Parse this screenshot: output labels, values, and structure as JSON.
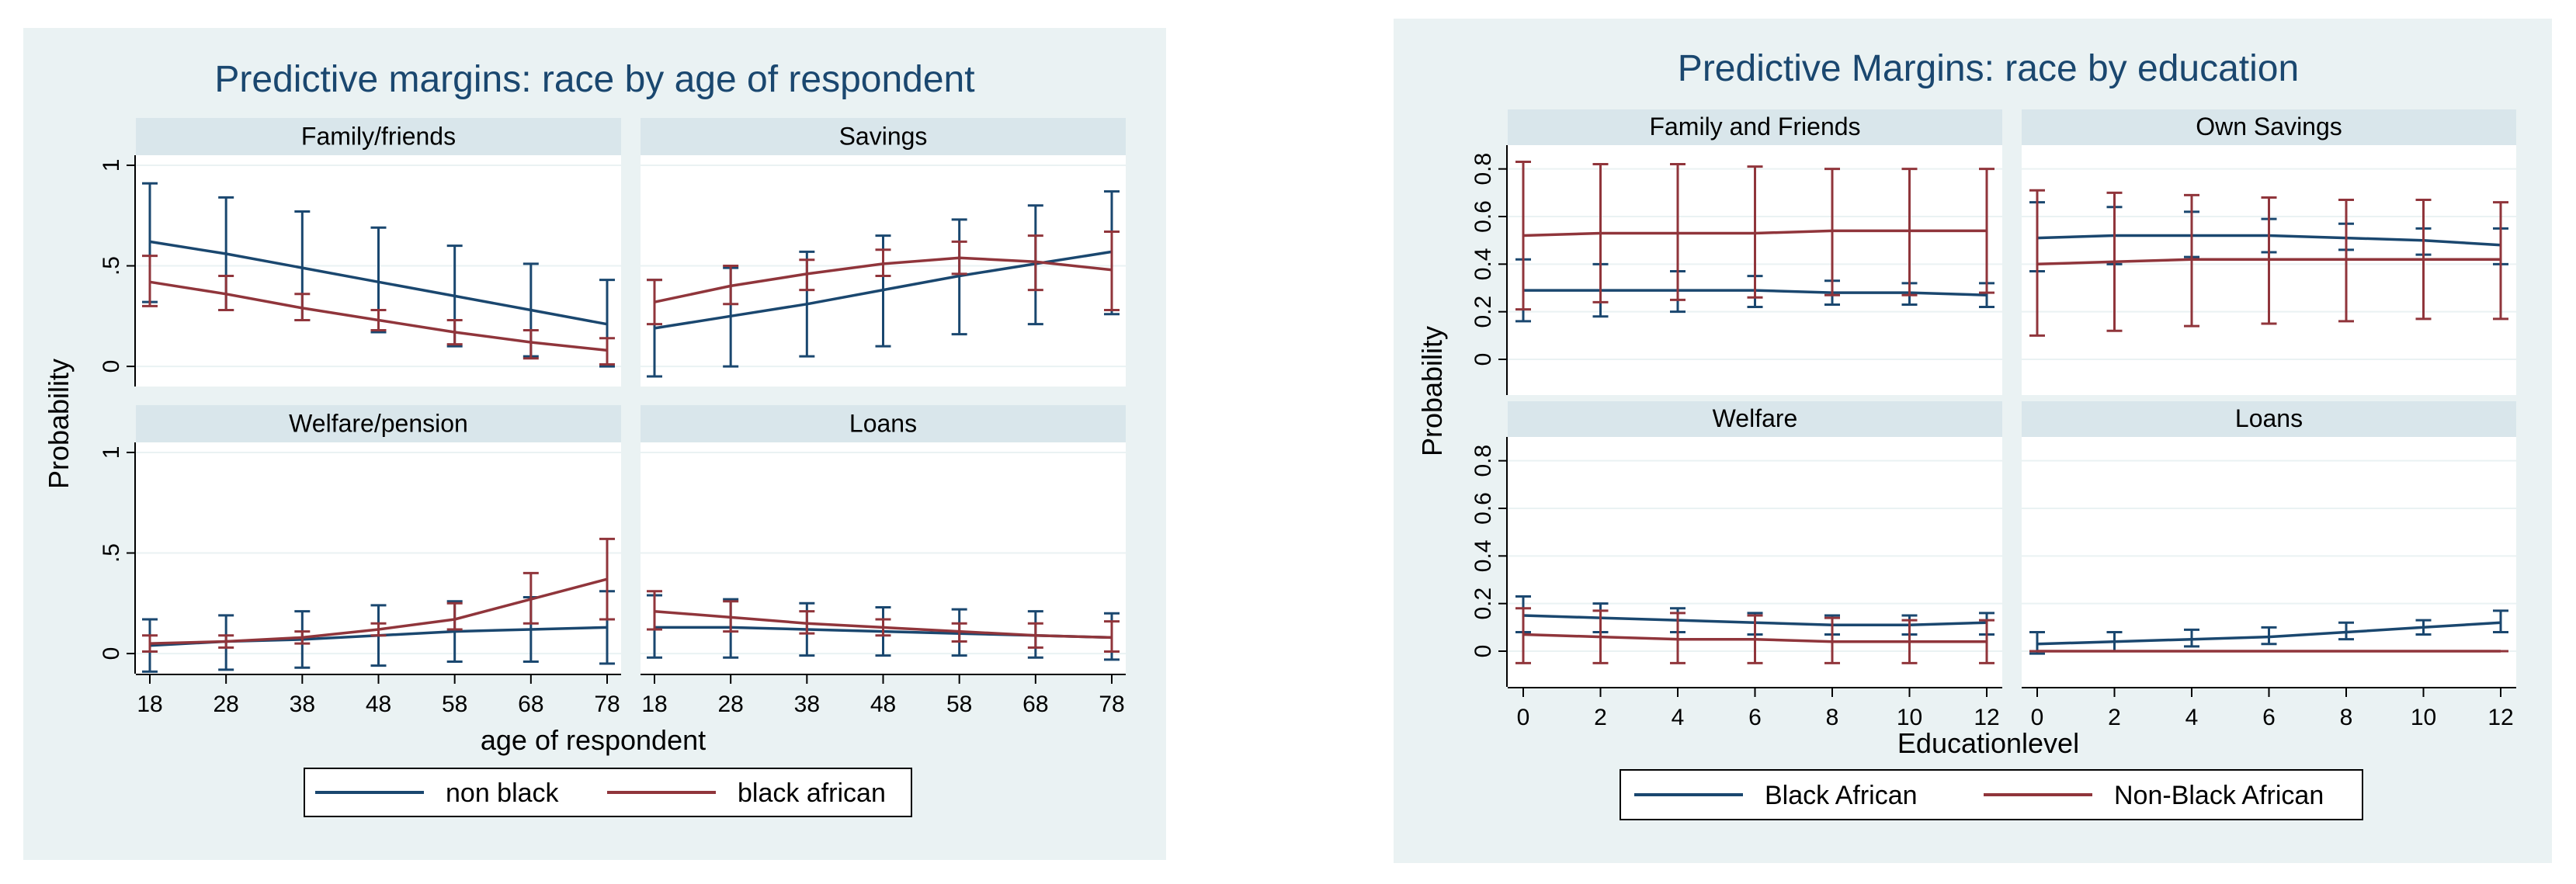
{
  "colors": {
    "series1": "#1a476f",
    "series2": "#90353b",
    "background": "#eaf2f3",
    "strip": "#d9e6eb",
    "grid": "#eaf2f3",
    "axis": "#000000",
    "title": "#1a476f"
  },
  "chart_data": [
    {
      "type": "line",
      "title": "Predictive margins:  race by age of respondent",
      "ylabel": "Probability",
      "xlabel": "age of respondent",
      "x": [
        18,
        28,
        38,
        48,
        58,
        68,
        78
      ],
      "xticks": [
        "18",
        "28",
        "38",
        "48",
        "58",
        "68",
        "78"
      ],
      "ylim": [
        -0.1,
        1.05
      ],
      "yticks": [
        0,
        0.5,
        1
      ],
      "ytick_labels": [
        "0",
        ".5",
        "1"
      ],
      "legend": [
        "non black",
        "black african"
      ],
      "legend_position": "bottom",
      "panels": [
        {
          "title": "Family/friends",
          "series": [
            {
              "name": "non black",
              "values": [
                0.62,
                0.56,
                0.49,
                0.42,
                0.35,
                0.28,
                0.21
              ],
              "lower": [
                0.32,
                0.28,
                0.23,
                0.17,
                0.1,
                0.05,
                0.0
              ],
              "upper": [
                0.91,
                0.84,
                0.77,
                0.69,
                0.6,
                0.51,
                0.43
              ]
            },
            {
              "name": "black african",
              "values": [
                0.42,
                0.36,
                0.29,
                0.23,
                0.17,
                0.12,
                0.08
              ],
              "lower": [
                0.3,
                0.28,
                0.23,
                0.18,
                0.11,
                0.04,
                0.01
              ],
              "upper": [
                0.55,
                0.45,
                0.36,
                0.28,
                0.23,
                0.18,
                0.14
              ]
            }
          ]
        },
        {
          "title": "Savings",
          "series": [
            {
              "name": "non black",
              "values": [
                0.19,
                0.25,
                0.31,
                0.38,
                0.45,
                0.51,
                0.57
              ],
              "lower": [
                -0.05,
                0.0,
                0.05,
                0.1,
                0.16,
                0.21,
                0.26
              ],
              "upper": [
                0.43,
                0.49,
                0.57,
                0.65,
                0.73,
                0.8,
                0.87
              ]
            },
            {
              "name": "black african",
              "values": [
                0.32,
                0.4,
                0.46,
                0.51,
                0.54,
                0.52,
                0.48
              ],
              "lower": [
                0.21,
                0.31,
                0.38,
                0.45,
                0.46,
                0.38,
                0.28
              ],
              "upper": [
                0.43,
                0.5,
                0.53,
                0.58,
                0.62,
                0.65,
                0.67
              ]
            }
          ]
        },
        {
          "title": "Welfare/pension",
          "series": [
            {
              "name": "non black",
              "values": [
                0.04,
                0.06,
                0.07,
                0.09,
                0.11,
                0.12,
                0.13
              ],
              "lower": [
                -0.09,
                -0.08,
                -0.07,
                -0.06,
                -0.04,
                -0.04,
                -0.05
              ],
              "upper": [
                0.17,
                0.19,
                0.21,
                0.24,
                0.26,
                0.28,
                0.31
              ]
            },
            {
              "name": "black african",
              "values": [
                0.05,
                0.06,
                0.08,
                0.12,
                0.17,
                0.27,
                0.37
              ],
              "lower": [
                0.01,
                0.03,
                0.05,
                0.09,
                0.12,
                0.15,
                0.17
              ],
              "upper": [
                0.09,
                0.09,
                0.11,
                0.15,
                0.25,
                0.4,
                0.57
              ]
            }
          ]
        },
        {
          "title": "Loans",
          "series": [
            {
              "name": "non black",
              "values": [
                0.13,
                0.13,
                0.12,
                0.11,
                0.1,
                0.09,
                0.08
              ],
              "lower": [
                -0.02,
                -0.02,
                -0.01,
                -0.01,
                -0.01,
                -0.02,
                -0.03
              ],
              "upper": [
                0.29,
                0.27,
                0.25,
                0.23,
                0.22,
                0.21,
                0.2
              ]
            },
            {
              "name": "black african",
              "values": [
                0.21,
                0.18,
                0.15,
                0.13,
                0.11,
                0.09,
                0.08
              ],
              "lower": [
                0.12,
                0.11,
                0.1,
                0.09,
                0.06,
                0.03,
                0.01
              ],
              "upper": [
                0.31,
                0.26,
                0.21,
                0.17,
                0.15,
                0.15,
                0.16
              ]
            }
          ]
        }
      ]
    },
    {
      "type": "line",
      "title": "Predictive Margins: race by education",
      "ylabel": "Probability",
      "xlabel": "Educationlevel",
      "x": [
        0,
        2,
        4,
        6,
        8,
        10,
        12
      ],
      "xticks": [
        "0",
        "2",
        "4",
        "6",
        "8",
        "10",
        "12"
      ],
      "ylim": [
        -0.15,
        0.9
      ],
      "yticks": [
        0,
        0.2,
        0.4,
        0.6,
        0.8
      ],
      "ytick_labels": [
        "0",
        "0.2",
        "0.4",
        "0.6",
        "0.8"
      ],
      "legend": [
        "Black African",
        "Non-Black African"
      ],
      "legend_position": "bottom",
      "panels": [
        {
          "title": "Family and Friends",
          "series": [
            {
              "name": "Black African",
              "values": [
                0.29,
                0.29,
                0.29,
                0.29,
                0.28,
                0.28,
                0.27
              ],
              "lower": [
                0.16,
                0.18,
                0.2,
                0.22,
                0.23,
                0.23,
                0.22
              ],
              "upper": [
                0.42,
                0.4,
                0.37,
                0.35,
                0.33,
                0.32,
                0.32
              ]
            },
            {
              "name": "Non-Black African",
              "values": [
                0.52,
                0.53,
                0.53,
                0.53,
                0.54,
                0.54,
                0.54
              ],
              "lower": [
                0.21,
                0.24,
                0.25,
                0.26,
                0.27,
                0.27,
                0.28
              ],
              "upper": [
                0.83,
                0.82,
                0.82,
                0.81,
                0.8,
                0.8,
                0.8
              ]
            }
          ]
        },
        {
          "title": "Own Savings",
          "series": [
            {
              "name": "Black African",
              "values": [
                0.51,
                0.52,
                0.52,
                0.52,
                0.51,
                0.5,
                0.48
              ],
              "lower": [
                0.37,
                0.4,
                0.43,
                0.45,
                0.46,
                0.44,
                0.4
              ],
              "upper": [
                0.66,
                0.64,
                0.62,
                0.59,
                0.57,
                0.55,
                0.55
              ]
            },
            {
              "name": "Non-Black African",
              "values": [
                0.4,
                0.41,
                0.42,
                0.42,
                0.42,
                0.42,
                0.42
              ],
              "lower": [
                0.1,
                0.12,
                0.14,
                0.15,
                0.16,
                0.17,
                0.17
              ],
              "upper": [
                0.71,
                0.7,
                0.69,
                0.68,
                0.67,
                0.67,
                0.66
              ]
            }
          ]
        },
        {
          "title": "Welfare",
          "series": [
            {
              "name": "Black African",
              "values": [
                0.15,
                0.14,
                0.13,
                0.12,
                0.11,
                0.11,
                0.12
              ],
              "lower": [
                0.08,
                0.08,
                0.08,
                0.07,
                0.07,
                0.07,
                0.07
              ],
              "upper": [
                0.23,
                0.2,
                0.18,
                0.16,
                0.15,
                0.15,
                0.16
              ]
            },
            {
              "name": "Non-Black African",
              "values": [
                0.07,
                0.06,
                0.05,
                0.05,
                0.04,
                0.04,
                0.04
              ],
              "lower": [
                -0.05,
                -0.05,
                -0.05,
                -0.05,
                -0.05,
                -0.05,
                -0.05
              ],
              "upper": [
                0.18,
                0.17,
                0.16,
                0.15,
                0.14,
                0.13,
                0.13
              ]
            }
          ]
        },
        {
          "title": "Loans",
          "series": [
            {
              "name": "Black African",
              "values": [
                0.03,
                0.04,
                0.05,
                0.06,
                0.08,
                0.1,
                0.12
              ],
              "lower": [
                -0.01,
                0.0,
                0.02,
                0.03,
                0.05,
                0.07,
                0.08
              ],
              "upper": [
                0.08,
                0.08,
                0.09,
                0.1,
                0.12,
                0.13,
                0.17
              ]
            },
            {
              "name": "Non-Black African",
              "values": [
                0.0,
                0.0,
                0.0,
                0.0,
                0.0,
                0.0,
                0.0
              ],
              "lower": [
                0.0,
                0.0,
                0.0,
                0.0,
                0.0,
                0.0,
                0.0
              ],
              "upper": [
                0.0,
                0.0,
                0.0,
                0.0,
                0.0,
                0.0,
                0.0
              ]
            }
          ]
        }
      ]
    }
  ]
}
